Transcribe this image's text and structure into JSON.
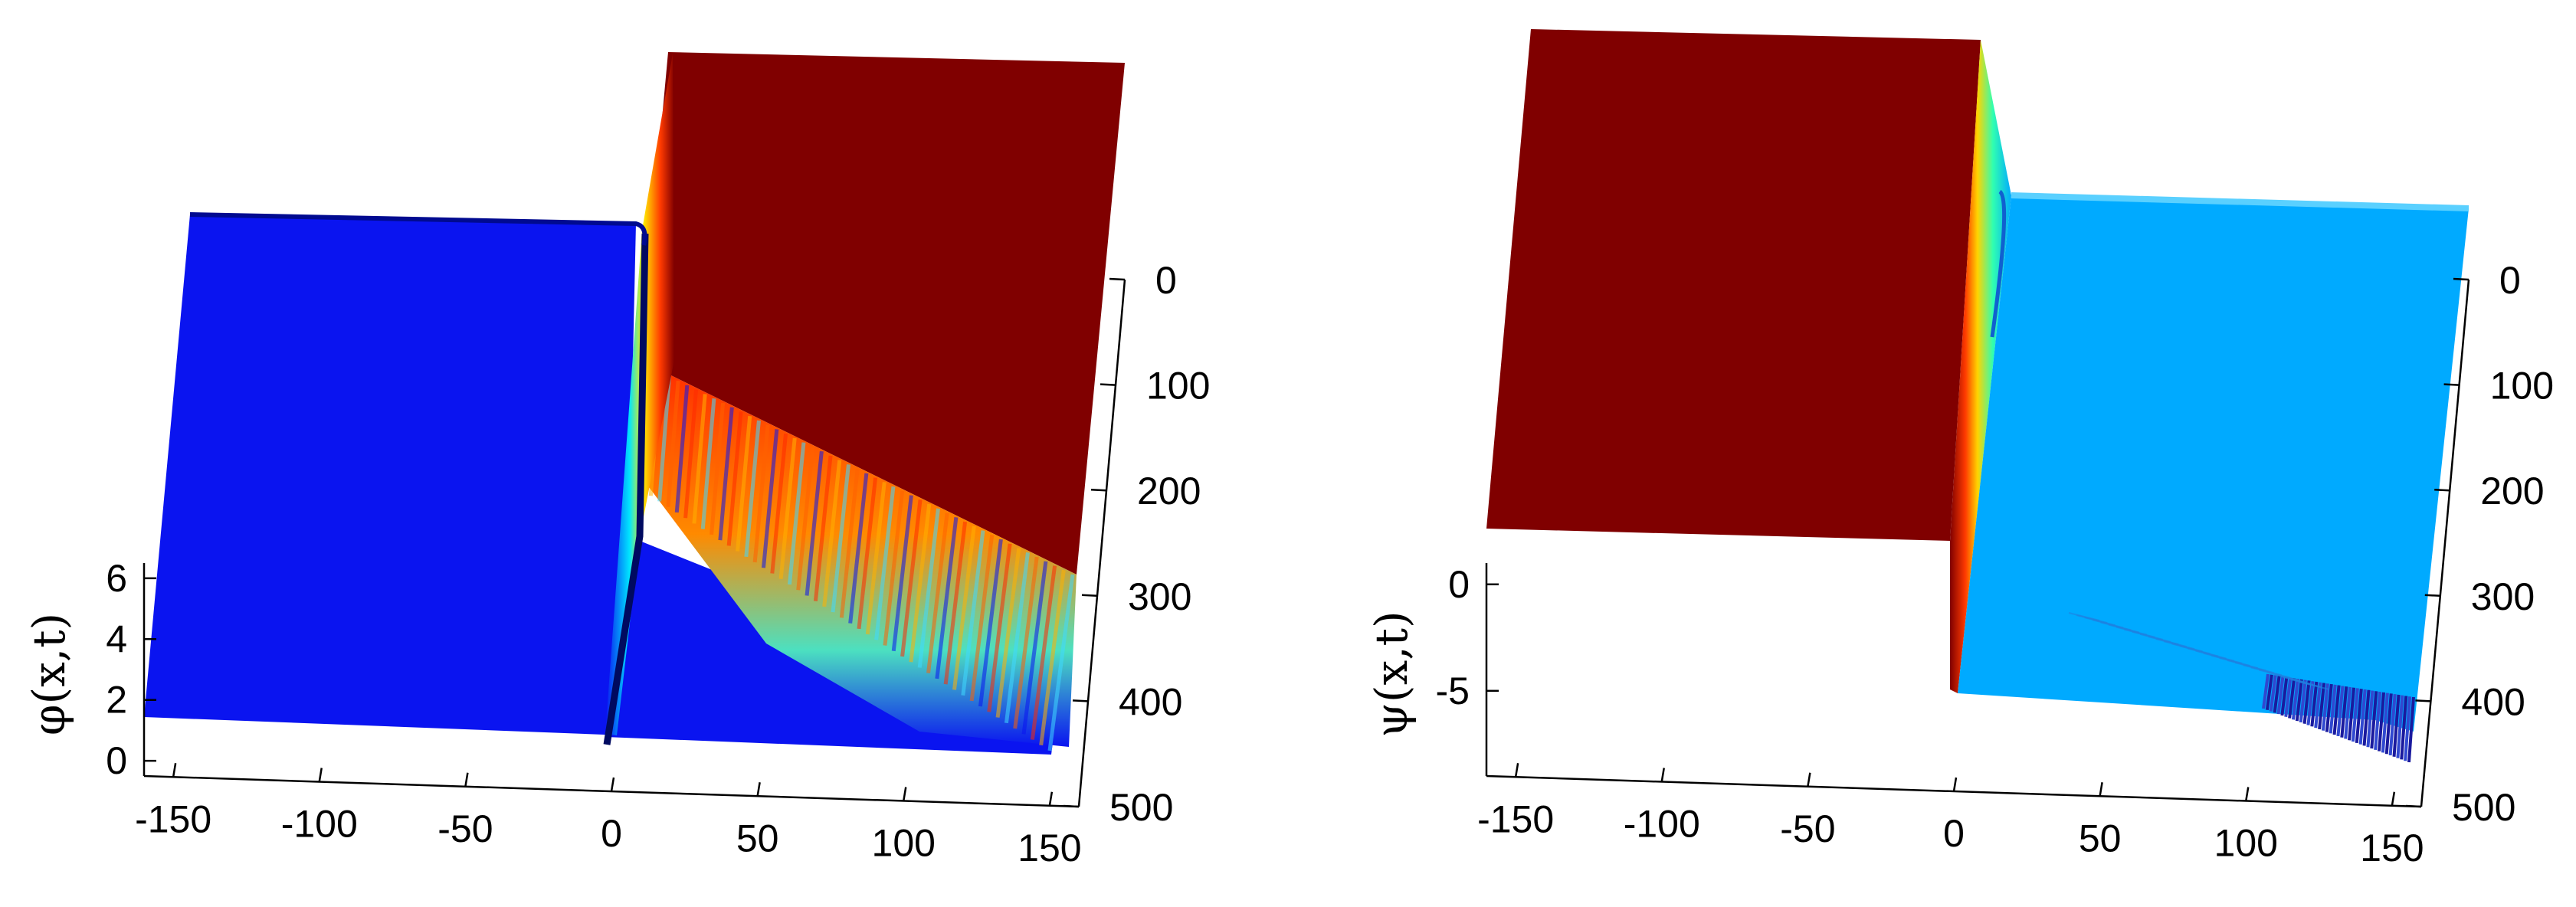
{
  "chart_data": [
    {
      "type": "surface",
      "zlabel": "φ(x,t)",
      "x_ticks": [
        "-150",
        "-100",
        "-50",
        "0",
        "50",
        "100",
        "150"
      ],
      "t_ticks": [
        "0",
        "100",
        "200",
        "300",
        "400",
        "500"
      ],
      "z_ticks": [
        "0",
        "2",
        "4",
        "6"
      ],
      "xlim": [
        -160,
        160
      ],
      "tlim": [
        0,
        500
      ],
      "zlim": [
        -0.5,
        6.5
      ],
      "colormap": "jet",
      "surface": {
        "left_plateau": 0,
        "right_plateau": 6.28,
        "kink_center_x": 0,
        "kink_velocity": 0.06,
        "radiation": "oscillations grow toward larger t for x > 0"
      },
      "colors": {
        "low": "#0a14f0",
        "high": "#800000"
      }
    },
    {
      "type": "surface",
      "zlabel": "ψ(x,t)",
      "x_ticks": [
        "-150",
        "-100",
        "-50",
        "0",
        "50",
        "100",
        "150"
      ],
      "t_ticks": [
        "0",
        "100",
        "200",
        "300",
        "400",
        "500"
      ],
      "z_ticks": [
        "-5",
        "0"
      ],
      "xlim": [
        -160,
        160
      ],
      "tlim": [
        0,
        500
      ],
      "zlim": [
        -9,
        1
      ],
      "colormap": "jet",
      "surface": {
        "left_plateau": 0,
        "right_plateau": -5,
        "kink_center_x": 0,
        "kink_velocity": 0.06,
        "radiation": "small oscillations near x = 100..150 at large t"
      },
      "colors": {
        "low": "#00aaff",
        "high": "#800000",
        "deep": "#1a1a9e"
      }
    }
  ]
}
